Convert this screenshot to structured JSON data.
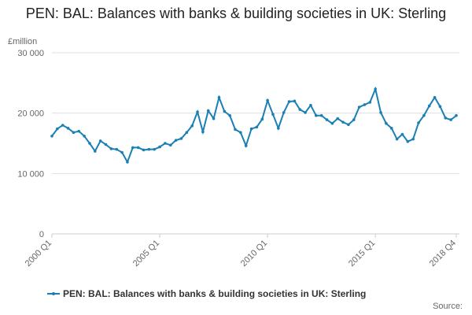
{
  "chart_data": {
    "type": "line",
    "title": "PEN: BAL: Balances with banks & building societies in UK: Sterling",
    "y_label": "£million",
    "source": "Source:",
    "categories": [
      "2000 Q1",
      null,
      null,
      null,
      null,
      null,
      null,
      null,
      null,
      null,
      null,
      null,
      null,
      null,
      null,
      null,
      null,
      null,
      null,
      null,
      "2005 Q1",
      null,
      null,
      null,
      null,
      null,
      null,
      null,
      null,
      null,
      null,
      null,
      null,
      null,
      null,
      null,
      null,
      null,
      null,
      null,
      "2010 Q1",
      null,
      null,
      null,
      null,
      null,
      null,
      null,
      null,
      null,
      null,
      null,
      null,
      null,
      null,
      null,
      null,
      null,
      null,
      null,
      "2015 Q1",
      null,
      null,
      null,
      null,
      null,
      null,
      null,
      null,
      null,
      null,
      null,
      null,
      null,
      null,
      "2018 Q4"
    ],
    "series": [
      {
        "name": "PEN: BAL: Balances with banks & building societies in UK: Sterling",
        "color": "#1a7fb5",
        "values": [
          16200,
          17400,
          18000,
          17500,
          16800,
          17000,
          16200,
          15000,
          13700,
          15400,
          14800,
          14100,
          14000,
          13500,
          11900,
          14300,
          14300,
          13900,
          14000,
          14000,
          14400,
          15000,
          14700,
          15500,
          15800,
          16800,
          17900,
          20200,
          16900,
          20400,
          19100,
          22600,
          20300,
          19600,
          17300,
          16800,
          14600,
          17400,
          17700,
          19000,
          22100,
          19800,
          17500,
          20100,
          21900,
          22000,
          20600,
          20100,
          21300,
          19600,
          19600,
          18900,
          18300,
          19100,
          18500,
          18100,
          18900,
          21000,
          21400,
          21800,
          24000,
          20100,
          18300,
          17500,
          15700,
          16500,
          15300,
          15700,
          18400,
          19600,
          21200,
          22600,
          21100,
          19200,
          18900,
          19600
        ]
      }
    ],
    "ylim": [
      0,
      30000
    ],
    "yticks": [
      0,
      {
        "value": 10000,
        "label": "10 000"
      },
      {
        "value": 20000,
        "label": "20 000"
      },
      {
        "value": 30000,
        "label": "30 000"
      }
    ],
    "grid": true
  }
}
